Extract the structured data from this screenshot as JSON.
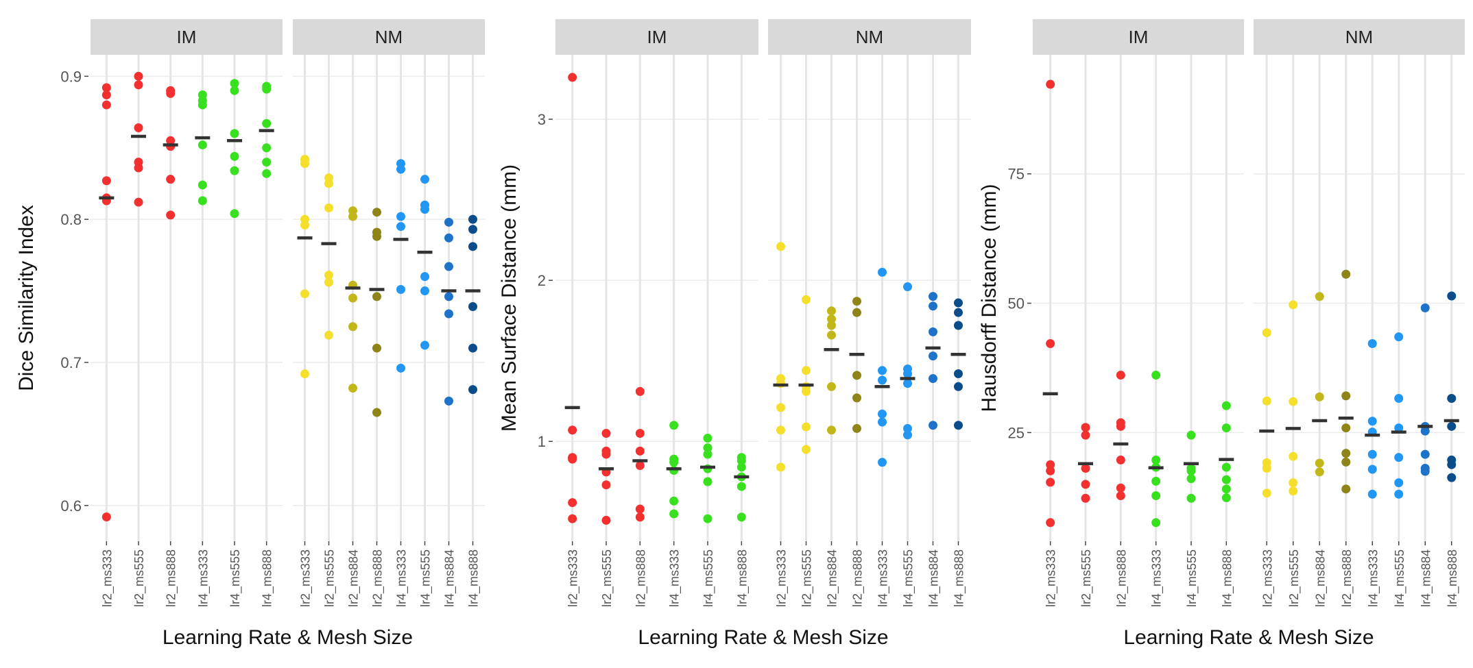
{
  "figure": {
    "xlabel": "Learning Rate & Mesh Size"
  },
  "colors": {
    "lr2_ms333": "#f4e02c",
    "lr2_ms555": "#f4e02c",
    "lr2_ms884": "#c2b71a",
    "lr2_ms888": "#8e8418",
    "lr4_ms333": "#2196f3",
    "lr4_ms555": "#2196f3",
    "lr4_ms884": "#1e73c8",
    "lr4_ms888": "#0b4c8a",
    "IM_lr2": "#f23030",
    "IM_lr4": "#39e020",
    "median": "#333333"
  },
  "chart_data": [
    {
      "type": "scatter",
      "ylabel": "Dice Similarity Index",
      "ylim": [
        0.575,
        0.915
      ],
      "yticks": [
        0.6,
        0.7,
        0.8,
        0.9
      ],
      "ytick_labels": [
        "0.6",
        "0.7",
        "0.8",
        "0.9"
      ],
      "panels": [
        {
          "label": "IM",
          "groups": [
            {
              "name": "lr2_ms333",
              "color": "#f23030",
              "points": [
                0.892,
                0.887,
                0.88,
                0.827,
                0.815,
                0.813,
                0.592
              ],
              "median": 0.815
            },
            {
              "name": "lr2_ms555",
              "color": "#f23030",
              "points": [
                0.9,
                0.894,
                0.864,
                0.84,
                0.836,
                0.812
              ],
              "median": 0.858
            },
            {
              "name": "lr2_ms888",
              "color": "#f23030",
              "points": [
                0.89,
                0.888,
                0.855,
                0.851,
                0.828,
                0.803
              ],
              "median": 0.852
            },
            {
              "name": "lr4_ms333",
              "color": "#39e020",
              "points": [
                0.887,
                0.883,
                0.88,
                0.852,
                0.824,
                0.813
              ],
              "median": 0.857
            },
            {
              "name": "lr4_ms555",
              "color": "#39e020",
              "points": [
                0.895,
                0.89,
                0.86,
                0.844,
                0.834,
                0.804
              ],
              "median": 0.855
            },
            {
              "name": "lr4_ms888",
              "color": "#39e020",
              "points": [
                0.893,
                0.891,
                0.867,
                0.85,
                0.84,
                0.832
              ],
              "median": 0.862
            }
          ]
        },
        {
          "label": "NM",
          "groups": [
            {
              "name": "lr2_ms333",
              "color": "#f4e02c",
              "points": [
                0.842,
                0.839,
                0.8,
                0.796,
                0.748,
                0.692
              ],
              "median": 0.787
            },
            {
              "name": "lr2_ms555",
              "color": "#f4e02c",
              "points": [
                0.829,
                0.825,
                0.808,
                0.761,
                0.756,
                0.719
              ],
              "median": 0.783
            },
            {
              "name": "lr2_ms884",
              "color": "#c2b71a",
              "points": [
                0.806,
                0.802,
                0.754,
                0.745,
                0.725,
                0.682
              ],
              "median": 0.752
            },
            {
              "name": "lr2_ms888",
              "color": "#8e8418",
              "points": [
                0.805,
                0.791,
                0.788,
                0.746,
                0.71,
                0.665
              ],
              "median": 0.751
            },
            {
              "name": "lr4_ms333",
              "color": "#2196f3",
              "points": [
                0.839,
                0.835,
                0.802,
                0.795,
                0.751,
                0.696
              ],
              "median": 0.786
            },
            {
              "name": "lr4_ms555",
              "color": "#2196f3",
              "points": [
                0.828,
                0.81,
                0.807,
                0.76,
                0.75,
                0.712
              ],
              "median": 0.777
            },
            {
              "name": "lr4_ms884",
              "color": "#1e73c8",
              "points": [
                0.798,
                0.787,
                0.767,
                0.746,
                0.734,
                0.673
              ],
              "median": 0.75
            },
            {
              "name": "lr4_ms888",
              "color": "#0b4c8a",
              "points": [
                0.8,
                0.793,
                0.781,
                0.739,
                0.71,
                0.681
              ],
              "median": 0.75
            }
          ]
        }
      ]
    },
    {
      "type": "scatter",
      "ylabel": "Mean Surface Distance (mm)",
      "ylim": [
        0.38,
        3.4
      ],
      "yticks": [
        1,
        2,
        3
      ],
      "ytick_labels": [
        "1",
        "2",
        "3"
      ],
      "panels": [
        {
          "label": "IM",
          "groups": [
            {
              "name": "lr2_ms333",
              "color": "#f23030",
              "points": [
                3.26,
                1.07,
                0.9,
                0.89,
                0.62,
                0.52
              ],
              "median": 1.21
            },
            {
              "name": "lr2_ms555",
              "color": "#f23030",
              "points": [
                1.05,
                0.94,
                0.92,
                0.81,
                0.73,
                0.51
              ],
              "median": 0.83
            },
            {
              "name": "lr2_ms888",
              "color": "#f23030",
              "points": [
                1.31,
                1.05,
                0.94,
                0.85,
                0.58,
                0.53
              ],
              "median": 0.88
            },
            {
              "name": "lr4_ms333",
              "color": "#39e020",
              "points": [
                1.1,
                0.89,
                0.87,
                0.82,
                0.63,
                0.55
              ],
              "median": 0.83
            },
            {
              "name": "lr4_ms555",
              "color": "#39e020",
              "points": [
                1.02,
                0.96,
                0.92,
                0.83,
                0.75,
                0.52
              ],
              "median": 0.84
            },
            {
              "name": "lr4_ms888",
              "color": "#39e020",
              "points": [
                0.9,
                0.88,
                0.84,
                0.78,
                0.72,
                0.53
              ],
              "median": 0.78
            }
          ]
        },
        {
          "label": "NM",
          "groups": [
            {
              "name": "lr2_ms333",
              "color": "#f4e02c",
              "points": [
                2.21,
                1.39,
                1.36,
                1.21,
                1.07,
                0.84
              ],
              "median": 1.35
            },
            {
              "name": "lr2_ms555",
              "color": "#f4e02c",
              "points": [
                1.88,
                1.44,
                1.34,
                1.31,
                1.09,
                0.95
              ],
              "median": 1.35
            },
            {
              "name": "lr2_ms884",
              "color": "#c2b71a",
              "points": [
                1.81,
                1.76,
                1.72,
                1.66,
                1.34,
                1.07
              ],
              "median": 1.57
            },
            {
              "name": "lr2_ms888",
              "color": "#8e8418",
              "points": [
                1.87,
                1.8,
                1.41,
                1.27,
                1.08
              ],
              "median": 1.54
            },
            {
              "name": "lr4_ms333",
              "color": "#2196f3",
              "points": [
                2.05,
                1.44,
                1.38,
                1.17,
                1.12,
                0.87
              ],
              "median": 1.34
            },
            {
              "name": "lr4_ms555",
              "color": "#2196f3",
              "points": [
                1.96,
                1.45,
                1.42,
                1.36,
                1.08,
                1.04
              ],
              "median": 1.39
            },
            {
              "name": "lr4_ms884",
              "color": "#1e73c8",
              "points": [
                1.9,
                1.84,
                1.68,
                1.53,
                1.39,
                1.1
              ],
              "median": 1.58
            },
            {
              "name": "lr4_ms888",
              "color": "#0b4c8a",
              "points": [
                1.86,
                1.8,
                1.72,
                1.42,
                1.34,
                1.1
              ],
              "median": 1.54
            }
          ]
        }
      ]
    },
    {
      "type": "scatter",
      "ylabel": "Hausdorff Distance (mm)",
      "ylim": [
        4,
        98
      ],
      "yticks": [
        25,
        50,
        75
      ],
      "ytick_labels": [
        "25",
        "50",
        "75"
      ],
      "panels": [
        {
          "label": "IM",
          "groups": [
            {
              "name": "lr2_ms333",
              "color": "#f23030",
              "points": [
                92.3,
                42.2,
                18.8,
                17.6,
                15.4,
                7.6
              ],
              "median": 32.5
            },
            {
              "name": "lr2_ms555",
              "color": "#f23030",
              "points": [
                26,
                24.5,
                18.1,
                15,
                12.3
              ],
              "median": 19
            },
            {
              "name": "lr2_ms888",
              "color": "#f23030",
              "points": [
                36.1,
                26.9,
                26.2,
                19.7,
                14.3,
                12.8
              ],
              "median": 22.8
            },
            {
              "name": "lr4_ms333",
              "color": "#39e020",
              "points": [
                36.1,
                19.7,
                18.3,
                15.6,
                12.8,
                7.6
              ],
              "median": 18.2
            },
            {
              "name": "lr4_ms555",
              "color": "#39e020",
              "points": [
                24.5,
                18.1,
                17.6,
                16.1,
                12.3
              ],
              "median": 19
            },
            {
              "name": "lr4_ms888",
              "color": "#39e020",
              "points": [
                30.2,
                25.9,
                18.3,
                15.9,
                14.1,
                12.4
              ],
              "median": 19.8
            }
          ]
        },
        {
          "label": "NM",
          "groups": [
            {
              "name": "lr2_ms333",
              "color": "#f4e02c",
              "points": [
                44.3,
                31.1,
                19.2,
                18.1,
                13.3
              ],
              "median": 25.3
            },
            {
              "name": "lr2_ms555",
              "color": "#f4e02c",
              "points": [
                49.7,
                31,
                20.4,
                15.3,
                13.7
              ],
              "median": 25.8
            },
            {
              "name": "lr2_ms884",
              "color": "#c2b71a",
              "points": [
                51.3,
                31.9,
                19.1,
                17.4
              ],
              "median": 27.3
            },
            {
              "name": "lr2_ms888",
              "color": "#8e8418",
              "points": [
                55.6,
                32.1,
                25.9,
                21,
                19.3,
                14.1
              ],
              "median": 27.8
            },
            {
              "name": "lr4_ms333",
              "color": "#2196f3",
              "points": [
                42.2,
                27.2,
                25.1,
                20.8,
                17.9,
                13.1
              ],
              "median": 24.5
            },
            {
              "name": "lr4_ms555",
              "color": "#2196f3",
              "points": [
                43.5,
                31.6,
                25.9,
                20.2,
                15.3,
                13.1
              ],
              "median": 25.1
            },
            {
              "name": "lr4_ms884",
              "color": "#1e73c8",
              "points": [
                49.1,
                26.2,
                25.3,
                20.8,
                18.1,
                17.5
              ],
              "median": 26.2
            },
            {
              "name": "lr4_ms888",
              "color": "#0b4c8a",
              "points": [
                51.4,
                31.6,
                26.2,
                19.7,
                18.8,
                16.3
              ],
              "median": 27.3
            }
          ]
        }
      ]
    }
  ]
}
